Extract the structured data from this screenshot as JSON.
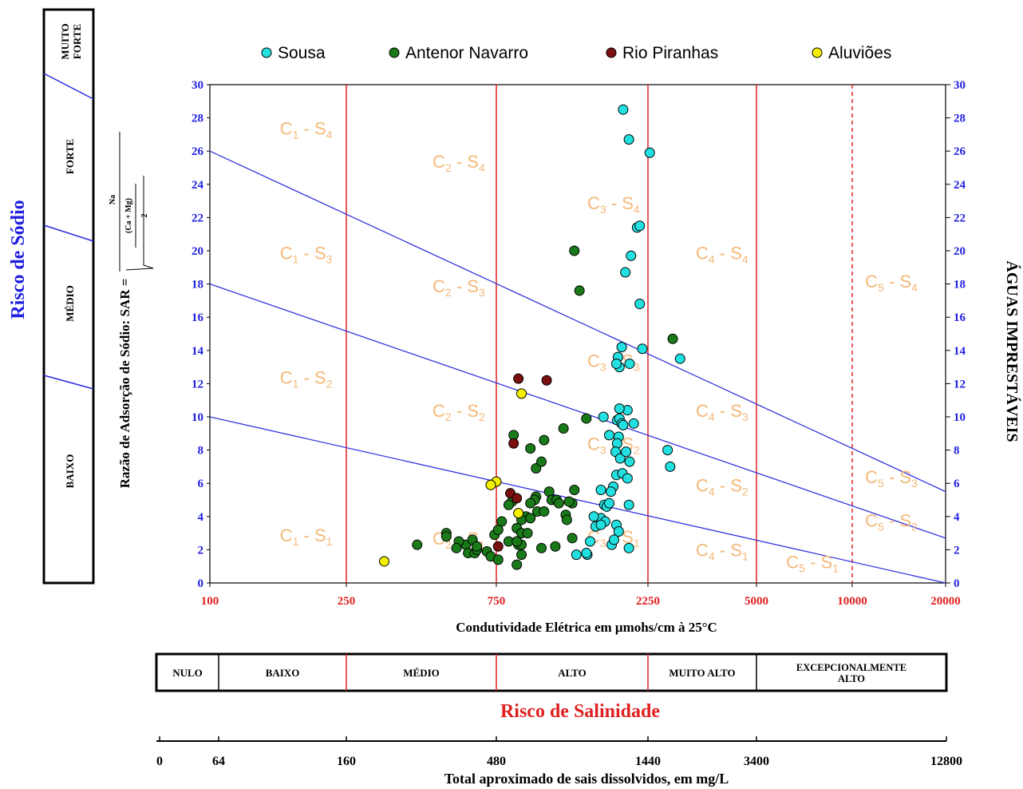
{
  "chart_data": {
    "type": "scatter",
    "title": "",
    "xlabel": "Condutividade Elétrica em μmohs/cm à 25°C",
    "ylabel": "Razão de Adsorção de Sódio: SAR =",
    "ylabel_formula": {
      "num": "Na",
      "den_top": "(Ca + Mg)",
      "den_bottom": "2"
    },
    "right_axis_label": "ÁGUAS IMPRESTÁVEIS",
    "x_scale": "custom-piecewise",
    "x_ticks": [
      "100",
      "250",
      "750",
      "2250",
      "5000",
      "10000",
      "20000"
    ],
    "x_tick_values": [
      100,
      250,
      750,
      2250,
      5000,
      10000,
      20000
    ],
    "ylim": [
      0,
      30
    ],
    "y_ticks": [
      0,
      2,
      4,
      6,
      8,
      10,
      12,
      14,
      16,
      18,
      20,
      22,
      24,
      26,
      28,
      30
    ],
    "legend_position": "top",
    "series": [
      {
        "name": "Sousa",
        "color": "#22e0e0",
        "points": [
          [
            1880,
            28.5
          ],
          [
            1960,
            26.7
          ],
          [
            2280,
            25.9
          ],
          [
            2080,
            21.4
          ],
          [
            2120,
            21.5
          ],
          [
            1990,
            19.7
          ],
          [
            1910,
            18.7
          ],
          [
            2120,
            16.8
          ],
          [
            2160,
            14.1
          ],
          [
            2850,
            13.5
          ],
          [
            1860,
            14.2
          ],
          [
            1830,
            13.0
          ],
          [
            1970,
            13.2
          ],
          [
            1810,
            13.6
          ],
          [
            1790,
            13.2
          ],
          [
            1940,
            10.4
          ],
          [
            1830,
            10.5
          ],
          [
            1800,
            9.8
          ],
          [
            1830,
            9.9
          ],
          [
            1860,
            9.6
          ],
          [
            1880,
            9.5
          ],
          [
            2030,
            9.6
          ],
          [
            1630,
            10.0
          ],
          [
            1700,
            8.9
          ],
          [
            1820,
            8.8
          ],
          [
            1800,
            8.4
          ],
          [
            1780,
            7.9
          ],
          [
            1840,
            7.5
          ],
          [
            1920,
            7.9
          ],
          [
            1970,
            7.3
          ],
          [
            2600,
            8.0
          ],
          [
            2650,
            7.0
          ],
          [
            1790,
            6.5
          ],
          [
            1870,
            6.6
          ],
          [
            1940,
            6.3
          ],
          [
            1750,
            5.8
          ],
          [
            1720,
            5.5
          ],
          [
            1600,
            5.6
          ],
          [
            1640,
            4.7
          ],
          [
            1670,
            4.6
          ],
          [
            1700,
            4.8
          ],
          [
            1600,
            3.9
          ],
          [
            1650,
            3.7
          ],
          [
            1520,
            4.0
          ],
          [
            1540,
            3.4
          ],
          [
            1600,
            3.5
          ],
          [
            1790,
            3.5
          ],
          [
            1820,
            3.1
          ],
          [
            1730,
            2.3
          ],
          [
            1760,
            2.6
          ],
          [
            1960,
            4.7
          ],
          [
            1960,
            2.1
          ],
          [
            1480,
            2.5
          ],
          [
            1450,
            1.7
          ],
          [
            1340,
            1.7
          ],
          [
            1440,
            1.8
          ]
        ]
      },
      {
        "name": "Antenor Navarro",
        "color": "#1a7a1a",
        "points": [
          [
            420,
            2.3
          ],
          [
            520,
            3.0
          ],
          [
            520,
            2.8
          ],
          [
            600,
            2.3
          ],
          [
            610,
            1.8
          ],
          [
            630,
            2.6
          ],
          [
            640,
            1.8
          ],
          [
            650,
            2.0
          ],
          [
            570,
            2.5
          ],
          [
            560,
            2.1
          ],
          [
            650,
            2.2
          ],
          [
            700,
            1.9
          ],
          [
            720,
            1.6
          ],
          [
            760,
            1.4
          ],
          [
            740,
            2.9
          ],
          [
            820,
            2.5
          ],
          [
            870,
            1.1
          ],
          [
            880,
            2.3
          ],
          [
            900,
            2.3
          ],
          [
            900,
            1.7
          ],
          [
            870,
            3.3
          ],
          [
            900,
            3.0
          ],
          [
            940,
            3.0
          ],
          [
            1040,
            2.1
          ],
          [
            1010,
            4.3
          ],
          [
            1060,
            4.3
          ],
          [
            1100,
            5.5
          ],
          [
            1120,
            5.0
          ],
          [
            1160,
            5.0
          ],
          [
            1180,
            4.8
          ],
          [
            1240,
            4.1
          ],
          [
            1250,
            3.8
          ],
          [
            1300,
            4.8
          ],
          [
            1270,
            4.9
          ],
          [
            1000,
            5.2
          ],
          [
            990,
            5.0
          ],
          [
            960,
            4.8
          ],
          [
            930,
            4.0
          ],
          [
            900,
            3.8
          ],
          [
            960,
            3.9
          ],
          [
            840,
            4.9
          ],
          [
            820,
            4.7
          ],
          [
            780,
            3.7
          ],
          [
            760,
            3.2
          ],
          [
            1000,
            6.9
          ],
          [
            1040,
            7.3
          ],
          [
            960,
            8.1
          ],
          [
            850,
            8.9
          ],
          [
            1060,
            8.6
          ],
          [
            1220,
            9.3
          ],
          [
            1440,
            9.9
          ],
          [
            1320,
            20.0
          ],
          [
            1370,
            17.6
          ],
          [
            2700,
            14.7
          ],
          [
            1320,
            5.6
          ],
          [
            1300,
            2.7
          ],
          [
            870,
            2.5
          ],
          [
            1150,
            2.2
          ]
        ]
      },
      {
        "name": "Rio Piranhas",
        "color": "#7a1010",
        "points": [
          [
            880,
            12.3
          ],
          [
            1080,
            12.2
          ],
          [
            850,
            8.4
          ],
          [
            830,
            5.4
          ],
          [
            870,
            5.1
          ],
          [
            760,
            2.2
          ]
        ]
      },
      {
        "name": "Aluviões",
        "color": "#f5f000",
        "points": [
          [
            900,
            11.4
          ],
          [
            750,
            6.1
          ],
          [
            720,
            5.9
          ],
          [
            880,
            4.2
          ],
          [
            330,
            1.3
          ]
        ]
      }
    ],
    "zone_labels": [
      {
        "text": "C1-S4",
        "x": 160,
        "y": 27.0
      },
      {
        "text": "C2-S4",
        "x": 470,
        "y": 25.0
      },
      {
        "text": "C3-S4",
        "x": 1450,
        "y": 22.5
      },
      {
        "text": "C1-S3",
        "x": 160,
        "y": 19.5
      },
      {
        "text": "C4-S4",
        "x": 3200,
        "y": 19.5
      },
      {
        "text": "C2-S3",
        "x": 470,
        "y": 17.5
      },
      {
        "text": "C5-S4",
        "x": 11000,
        "y": 17.8
      },
      {
        "text": "C3-S3",
        "x": 1450,
        "y": 13.0
      },
      {
        "text": "C1-S2",
        "x": 160,
        "y": 12.0
      },
      {
        "text": "C2-S2",
        "x": 470,
        "y": 10.0
      },
      {
        "text": "C4-S3",
        "x": 3200,
        "y": 10.0
      },
      {
        "text": "C3-S2",
        "x": 1450,
        "y": 8.0
      },
      {
        "text": "C5-S3",
        "x": 11000,
        "y": 6.0
      },
      {
        "text": "C4-S2",
        "x": 3200,
        "y": 5.5
      },
      {
        "text": "C5-S2",
        "x": 11000,
        "y": 3.4
      },
      {
        "text": "C1-S1",
        "x": 160,
        "y": 2.5
      },
      {
        "text": "C2-S1",
        "x": 470,
        "y": 2.3
      },
      {
        "text": "C3-S1",
        "x": 1450,
        "y": 2.4
      },
      {
        "text": "C4-S1",
        "x": 3200,
        "y": 1.6
      },
      {
        "text": "C5-S1",
        "x": 6200,
        "y": 0.9
      }
    ],
    "sodium_boundaries": [
      {
        "y_at_100": 26,
        "y_at_20000": 5.5
      },
      {
        "y_at_100": 18,
        "y_at_20000": 2.7
      },
      {
        "y_at_100": 10,
        "y_at_20000": 0
      }
    ],
    "salinity_boundaries": [
      250,
      750,
      2250,
      5000
    ],
    "dashed_boundary": 10000
  },
  "legend": [
    "Sousa",
    "Antenor Navarro",
    "Rio Piranhas",
    "Aluviões"
  ],
  "sodium_risk": {
    "title": "Risco de Sódio",
    "levels": [
      "MUITO FORTE",
      "FORTE",
      "MÉDIO",
      "BAIXO"
    ]
  },
  "salinity_risk": {
    "title": "Risco de Salinidade",
    "levels": [
      "NULO",
      "BAIXO",
      "MÉDIO",
      "ALTO",
      "MUITO ALTO",
      "EXCEPCIONALMENTE ALTO"
    ]
  },
  "tds_scale": {
    "label": "Total aproximado de sais dissolvidos, em mg/L",
    "ticks": [
      "0",
      "64",
      "160",
      "480",
      "1440",
      "3400",
      "12800"
    ]
  }
}
